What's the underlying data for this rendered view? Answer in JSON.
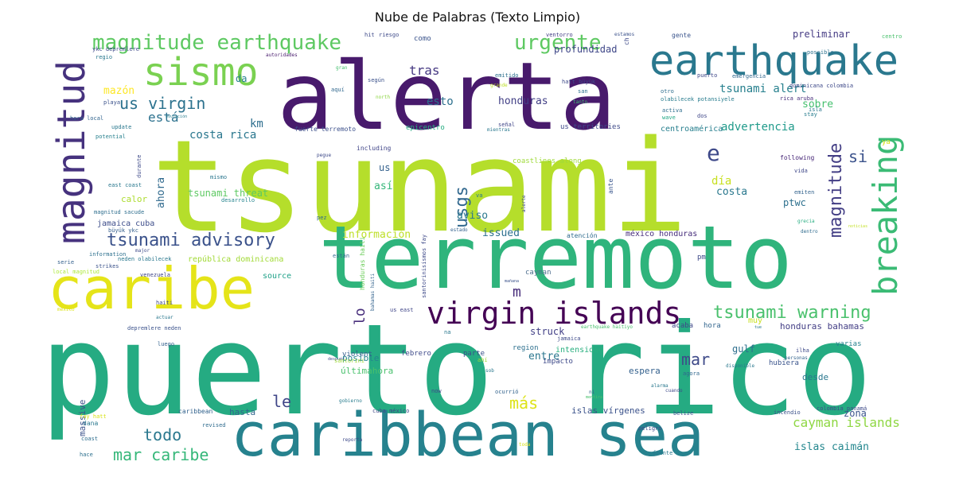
{
  "title": "Nube de Palabras (Texto Limpio)",
  "words": [
    {
      "text": "tsunami",
      "color": "#b5de2b"
    },
    {
      "text": "puerto rico",
      "color": "#25ab82"
    },
    {
      "text": "terremoto",
      "color": "#2fb47c"
    },
    {
      "text": "alerta",
      "color": "#481a6c"
    },
    {
      "text": "caribbean sea",
      "color": "#26828e"
    },
    {
      "text": "caribe",
      "color": "#e5e419"
    },
    {
      "text": "earthquake",
      "color": "#2a788e"
    },
    {
      "text": "sismo",
      "color": "#7ad151"
    },
    {
      "text": "breaking",
      "color": "#3bbb75"
    },
    {
      "text": "magnitud",
      "color": "#46327e"
    },
    {
      "text": "virgin islands",
      "color": "#440154"
    },
    {
      "text": "magnitude earthquake",
      "color": "#5ec962"
    },
    {
      "text": "tsunami advisory",
      "color": "#3b528b"
    },
    {
      "text": "tsunami warning",
      "color": "#4ac16d"
    },
    {
      "text": "urgente",
      "color": "#5ec962"
    },
    {
      "text": "magnitude",
      "color": "#433e85"
    },
    {
      "text": "us virgin",
      "color": "#2c728e"
    },
    {
      "text": "usgs",
      "color": "#31688e"
    },
    {
      "text": "mar caribe",
      "color": "#35b779"
    },
    {
      "text": "cayman islands",
      "color": "#8fd744"
    },
    {
      "text": "todo",
      "color": "#2a788e"
    },
    {
      "text": "mar",
      "color": "#3e4a89"
    },
    {
      "text": "más",
      "color": "#dde318"
    },
    {
      "text": "le",
      "color": "#404688"
    },
    {
      "text": "e",
      "color": "#3e4989"
    },
    {
      "text": "si",
      "color": "#3b528b"
    },
    {
      "text": "lo",
      "color": "#472d7b"
    },
    {
      "text": "m",
      "color": "#472c7a"
    },
    {
      "text": "está",
      "color": "#2c718e"
    },
    {
      "text": "km",
      "color": "#2e6e8e"
    },
    {
      "text": "esto",
      "color": "#2d708e"
    },
    {
      "text": "tras",
      "color": "#453882"
    },
    {
      "text": "advertencia",
      "color": "#1f9a8a"
    },
    {
      "text": "costa rica",
      "color": "#2a778e"
    },
    {
      "text": "tsunami alert",
      "color": "#27808e"
    },
    {
      "text": "preliminar",
      "color": "#443a83"
    },
    {
      "text": "profundidad",
      "color": "#3f4788"
    },
    {
      "text": "honduras",
      "color": "#424086"
    },
    {
      "text": "mazón",
      "color": "#fde725"
    },
    {
      "text": "da",
      "color": "#26818e"
    },
    {
      "text": "sobre",
      "color": "#46c06f"
    },
    {
      "text": "día",
      "color": "#c8e020"
    },
    {
      "text": "costa",
      "color": "#2a788e"
    },
    {
      "text": "ptwc",
      "color": "#2d708e"
    },
    {
      "text": "información",
      "color": "#bddf26"
    },
    {
      "text": "issued",
      "color": "#2d708e"
    },
    {
      "text": "ahora",
      "color": "#306a8e"
    },
    {
      "text": "así",
      "color": "#35b779"
    },
    {
      "text": "us",
      "color": "#34618d"
    },
    {
      "text": "aviso",
      "color": "#2a788e"
    },
    {
      "text": "tsunami threat",
      "color": "#5ec962"
    },
    {
      "text": "calor",
      "color": "#addc30"
    },
    {
      "text": "jamaica cuba",
      "color": "#3d4d8a"
    },
    {
      "text": "república dominicana",
      "color": "#a2da37"
    },
    {
      "text": "source",
      "color": "#1fa188"
    },
    {
      "text": "struck",
      "color": "#424086"
    },
    {
      "text": "entre",
      "color": "#2a768e"
    },
    {
      "text": "posible",
      "color": "#25848e"
    },
    {
      "text": "últimahora",
      "color": "#4ac16d"
    },
    {
      "text": "hasta",
      "color": "#31678e"
    },
    {
      "text": "massive",
      "color": "#3b528b"
    },
    {
      "text": "islas vírgenes",
      "color": "#3b528b"
    },
    {
      "text": "islas caimán",
      "color": "#24878e"
    },
    {
      "text": "zona",
      "color": "#3a538b"
    },
    {
      "text": "honduras bahamas",
      "color": "#433e85"
    },
    {
      "text": "gulf",
      "color": "#2e6f8e"
    },
    {
      "text": "espera",
      "color": "#34618d"
    },
    {
      "text": "desde",
      "color": "#2a778e"
    },
    {
      "text": "intensidad",
      "color": "#29af7f"
    },
    {
      "text": "impacto",
      "color": "#3e4a89"
    },
    {
      "text": "acaba",
      "color": "#3f4889"
    },
    {
      "text": "hora",
      "color": "#32658e"
    },
    {
      "text": "hubiera",
      "color": "#3a548c"
    },
    {
      "text": "varias",
      "color": "#26818e"
    },
    {
      "text": "febrero",
      "color": "#3e4a89"
    },
    {
      "text": "violent",
      "color": "#355f8d"
    },
    {
      "text": "parte",
      "color": "#3b518b"
    },
    {
      "text": "region",
      "color": "#2d708e"
    },
    {
      "text": "centroamérica",
      "color": "#277f8e"
    },
    {
      "text": "méxico honduras",
      "color": "#472d7b"
    },
    {
      "text": "atención",
      "color": "#2f6b8e"
    },
    {
      "text": "pm",
      "color": "#3e4a89"
    },
    {
      "text": "cayman",
      "color": "#4e6f8e"
    },
    {
      "text": "honduras haiti",
      "color": "#6ccd5a"
    },
    {
      "text": "including",
      "color": "#404588"
    },
    {
      "text": "fuerte terremoto",
      "color": "#3c508b"
    },
    {
      "text": "epicentro",
      "color": "#26ad81"
    },
    {
      "text": "us territories",
      "color": "#3e4a89"
    },
    {
      "text": "señal",
      "color": "#404688"
    },
    {
      "text": "mientras",
      "color": "#2a788e"
    },
    {
      "text": "coastlines along",
      "color": "#9fda3a"
    },
    {
      "text": "ante",
      "color": "#39568c"
    },
    {
      "text": "following",
      "color": "#482878"
    },
    {
      "text": "vida",
      "color": "#3f4889"
    },
    {
      "text": "emiten",
      "color": "#33638d"
    },
    {
      "text": "grecia",
      "color": "#26ad81"
    },
    {
      "text": "dentro",
      "color": "#2f6b8e"
    },
    {
      "text": "noticias",
      "color": "#c2df23"
    },
    {
      "text": "stay",
      "color": "#287d8e"
    },
    {
      "text": "isla",
      "color": "#2a788e"
    },
    {
      "text": "rica aruba",
      "color": "#472d7b"
    },
    {
      "text": "dominicana colombia",
      "color": "#3e4989"
    },
    {
      "text": "olabilecek potansiyele",
      "color": "#287c8e"
    },
    {
      "text": "emergencia",
      "color": "#31688e"
    },
    {
      "text": "puerto",
      "color": "#3f4788"
    },
    {
      "text": "otro",
      "color": "#2e6e8e"
    },
    {
      "text": "activa",
      "color": "#2e6e8e"
    },
    {
      "text": "dos",
      "color": "#3f4788"
    },
    {
      "text": "wave",
      "color": "#22a785"
    },
    {
      "text": "hatt büyük",
      "color": "#3e4a89"
    },
    {
      "text": "san",
      "color": "#2d708e"
    },
    {
      "text": "tanto",
      "color": "#40bd72"
    },
    {
      "text": "grande",
      "color": "#bddf26"
    },
    {
      "text": "north",
      "color": "#8ed645"
    },
    {
      "text": "aquí",
      "color": "#31688e"
    },
    {
      "text": "según",
      "color": "#3b528b"
    },
    {
      "text": "emitido",
      "color": "#2d708e"
    },
    {
      "text": "como",
      "color": "#3a538b"
    },
    {
      "text": "ventorro",
      "color": "#433e85"
    },
    {
      "text": "estamos",
      "color": "#3b528b"
    },
    {
      "text": "gente",
      "color": "#3a548c"
    },
    {
      "text": "centro",
      "color": "#4ac16d"
    },
    {
      "text": "possible",
      "color": "#2c728e"
    },
    {
      "text": "hit",
      "color": "#3e4a89"
    },
    {
      "text": "riesgo",
      "color": "#3e4a89"
    },
    {
      "text": "gran",
      "color": "#46c06f"
    },
    {
      "text": "ykc depremlere",
      "color": "#3e4a89"
    },
    {
      "text": "regio",
      "color": "#2a788e"
    },
    {
      "text": "autoridades",
      "color": "#481b6d"
    },
    {
      "text": "playa",
      "color": "#3b528b"
    },
    {
      "text": "hora local",
      "color": "#32658e"
    },
    {
      "text": "update",
      "color": "#2a788e"
    },
    {
      "text": "ovulación",
      "color": "#287d8e"
    },
    {
      "text": "potential",
      "color": "#27808e"
    },
    {
      "text": "durante",
      "color": "#3e4a89"
    },
    {
      "text": "east coast",
      "color": "#2a788e"
    },
    {
      "text": "mismo",
      "color": "#2a768e"
    },
    {
      "text": "magnitud sacude",
      "color": "#2e6e8e"
    },
    {
      "text": "desarrollo",
      "color": "#25848e"
    },
    {
      "text": "büyük ykc",
      "color": "#355f8d"
    },
    {
      "text": "information",
      "color": "#2d708e"
    },
    {
      "text": "major",
      "color": "#3e4a89"
    },
    {
      "text": "neden olabilecek",
      "color": "#2a788e"
    },
    {
      "text": "strikes",
      "color": "#3b528b"
    },
    {
      "text": "serie",
      "color": "#34618d"
    },
    {
      "text": "local magnitud",
      "color": "#ade839"
    },
    {
      "text": "venezuela",
      "color": "#404688"
    },
    {
      "text": "están",
      "color": "#31688e"
    },
    {
      "text": "haiti",
      "color": "#3e4a89"
    },
    {
      "text": "mexico",
      "color": "#dce319"
    },
    {
      "text": "actuar",
      "color": "#2a788e"
    },
    {
      "text": "depremlere neden",
      "color": "#3b528b"
    },
    {
      "text": "luego",
      "color": "#34618d"
    },
    {
      "text": "después",
      "color": "#3e4a89"
    },
    {
      "text": "santorini",
      "color": "#9fda3a"
    },
    {
      "text": "caribbean",
      "color": "#33638d"
    },
    {
      "text": "dana",
      "color": "#2a788e"
    },
    {
      "text": "revised",
      "color": "#2f6b8e"
    },
    {
      "text": "coast",
      "color": "#2e6e8e"
    },
    {
      "text": "fay hatt",
      "color": "#d8e219"
    },
    {
      "text": "hace",
      "color": "#2d708e"
    },
    {
      "text": "cuba méxico",
      "color": "#404688"
    },
    {
      "text": "gobierno",
      "color": "#287c8e"
    },
    {
      "text": "reporta",
      "color": "#3e4a89"
    },
    {
      "text": "toda",
      "color": "#d8e219"
    },
    {
      "text": "peligro",
      "color": "#3e4a89"
    },
    {
      "text": "frente",
      "color": "#2a788e"
    },
    {
      "text": "belize",
      "color": "#3a548c"
    },
    {
      "text": "incendio",
      "color": "#3b528b"
    },
    {
      "text": "colombia panamá",
      "color": "#3e4a89"
    },
    {
      "text": "ilha",
      "color": "#3e4a89"
    },
    {
      "text": "personas",
      "color": "#33638d"
    },
    {
      "text": "disponible",
      "color": "#2a788e"
    },
    {
      "text": "agora",
      "color": "#31688e"
    },
    {
      "text": "alarma",
      "color": "#2a788e"
    },
    {
      "text": "cuando",
      "color": "#3e4a89"
    },
    {
      "text": "ni",
      "color": "#34618d"
    },
    {
      "text": "mentira",
      "color": "#4ac16d"
    },
    {
      "text": "jamaica",
      "color": "#3e4a89"
    },
    {
      "text": "sob",
      "color": "#2a788e"
    },
    {
      "text": "ahí",
      "color": "#9fda3a"
    },
    {
      "text": "now",
      "color": "#3e4a89"
    },
    {
      "text": "ocurrió",
      "color": "#33638d"
    },
    {
      "text": "na",
      "color": "#2a788e"
    },
    {
      "text": "mañana",
      "color": "#3b528b"
    },
    {
      "text": "earthquake haitiyo",
      "color": "#4ac16d"
    },
    {
      "text": "tue",
      "color": "#2a788e"
    },
    {
      "text": "us east",
      "color": "#404688"
    },
    {
      "text": "bahamas haiti",
      "color": "#33638d"
    },
    {
      "text": "santorinisismos fay",
      "color": "#3e4a89"
    },
    {
      "text": "pez",
      "color": "#31688e"
    },
    {
      "text": "estado",
      "color": "#34618d"
    },
    {
      "text": "pegue",
      "color": "#3e4a89"
    },
    {
      "text": "va",
      "color": "#2a788e"
    },
    {
      "text": "alerte",
      "color": "#3e4a89"
    },
    {
      "text": "ya",
      "color": "#d8e219"
    },
    {
      "text": "gente2",
      "color": "#ffffff"
    },
    {
      "text": "ch",
      "color": "#3e4a89"
    },
    {
      "text": "muy",
      "color": "#c8e020"
    }
  ]
}
